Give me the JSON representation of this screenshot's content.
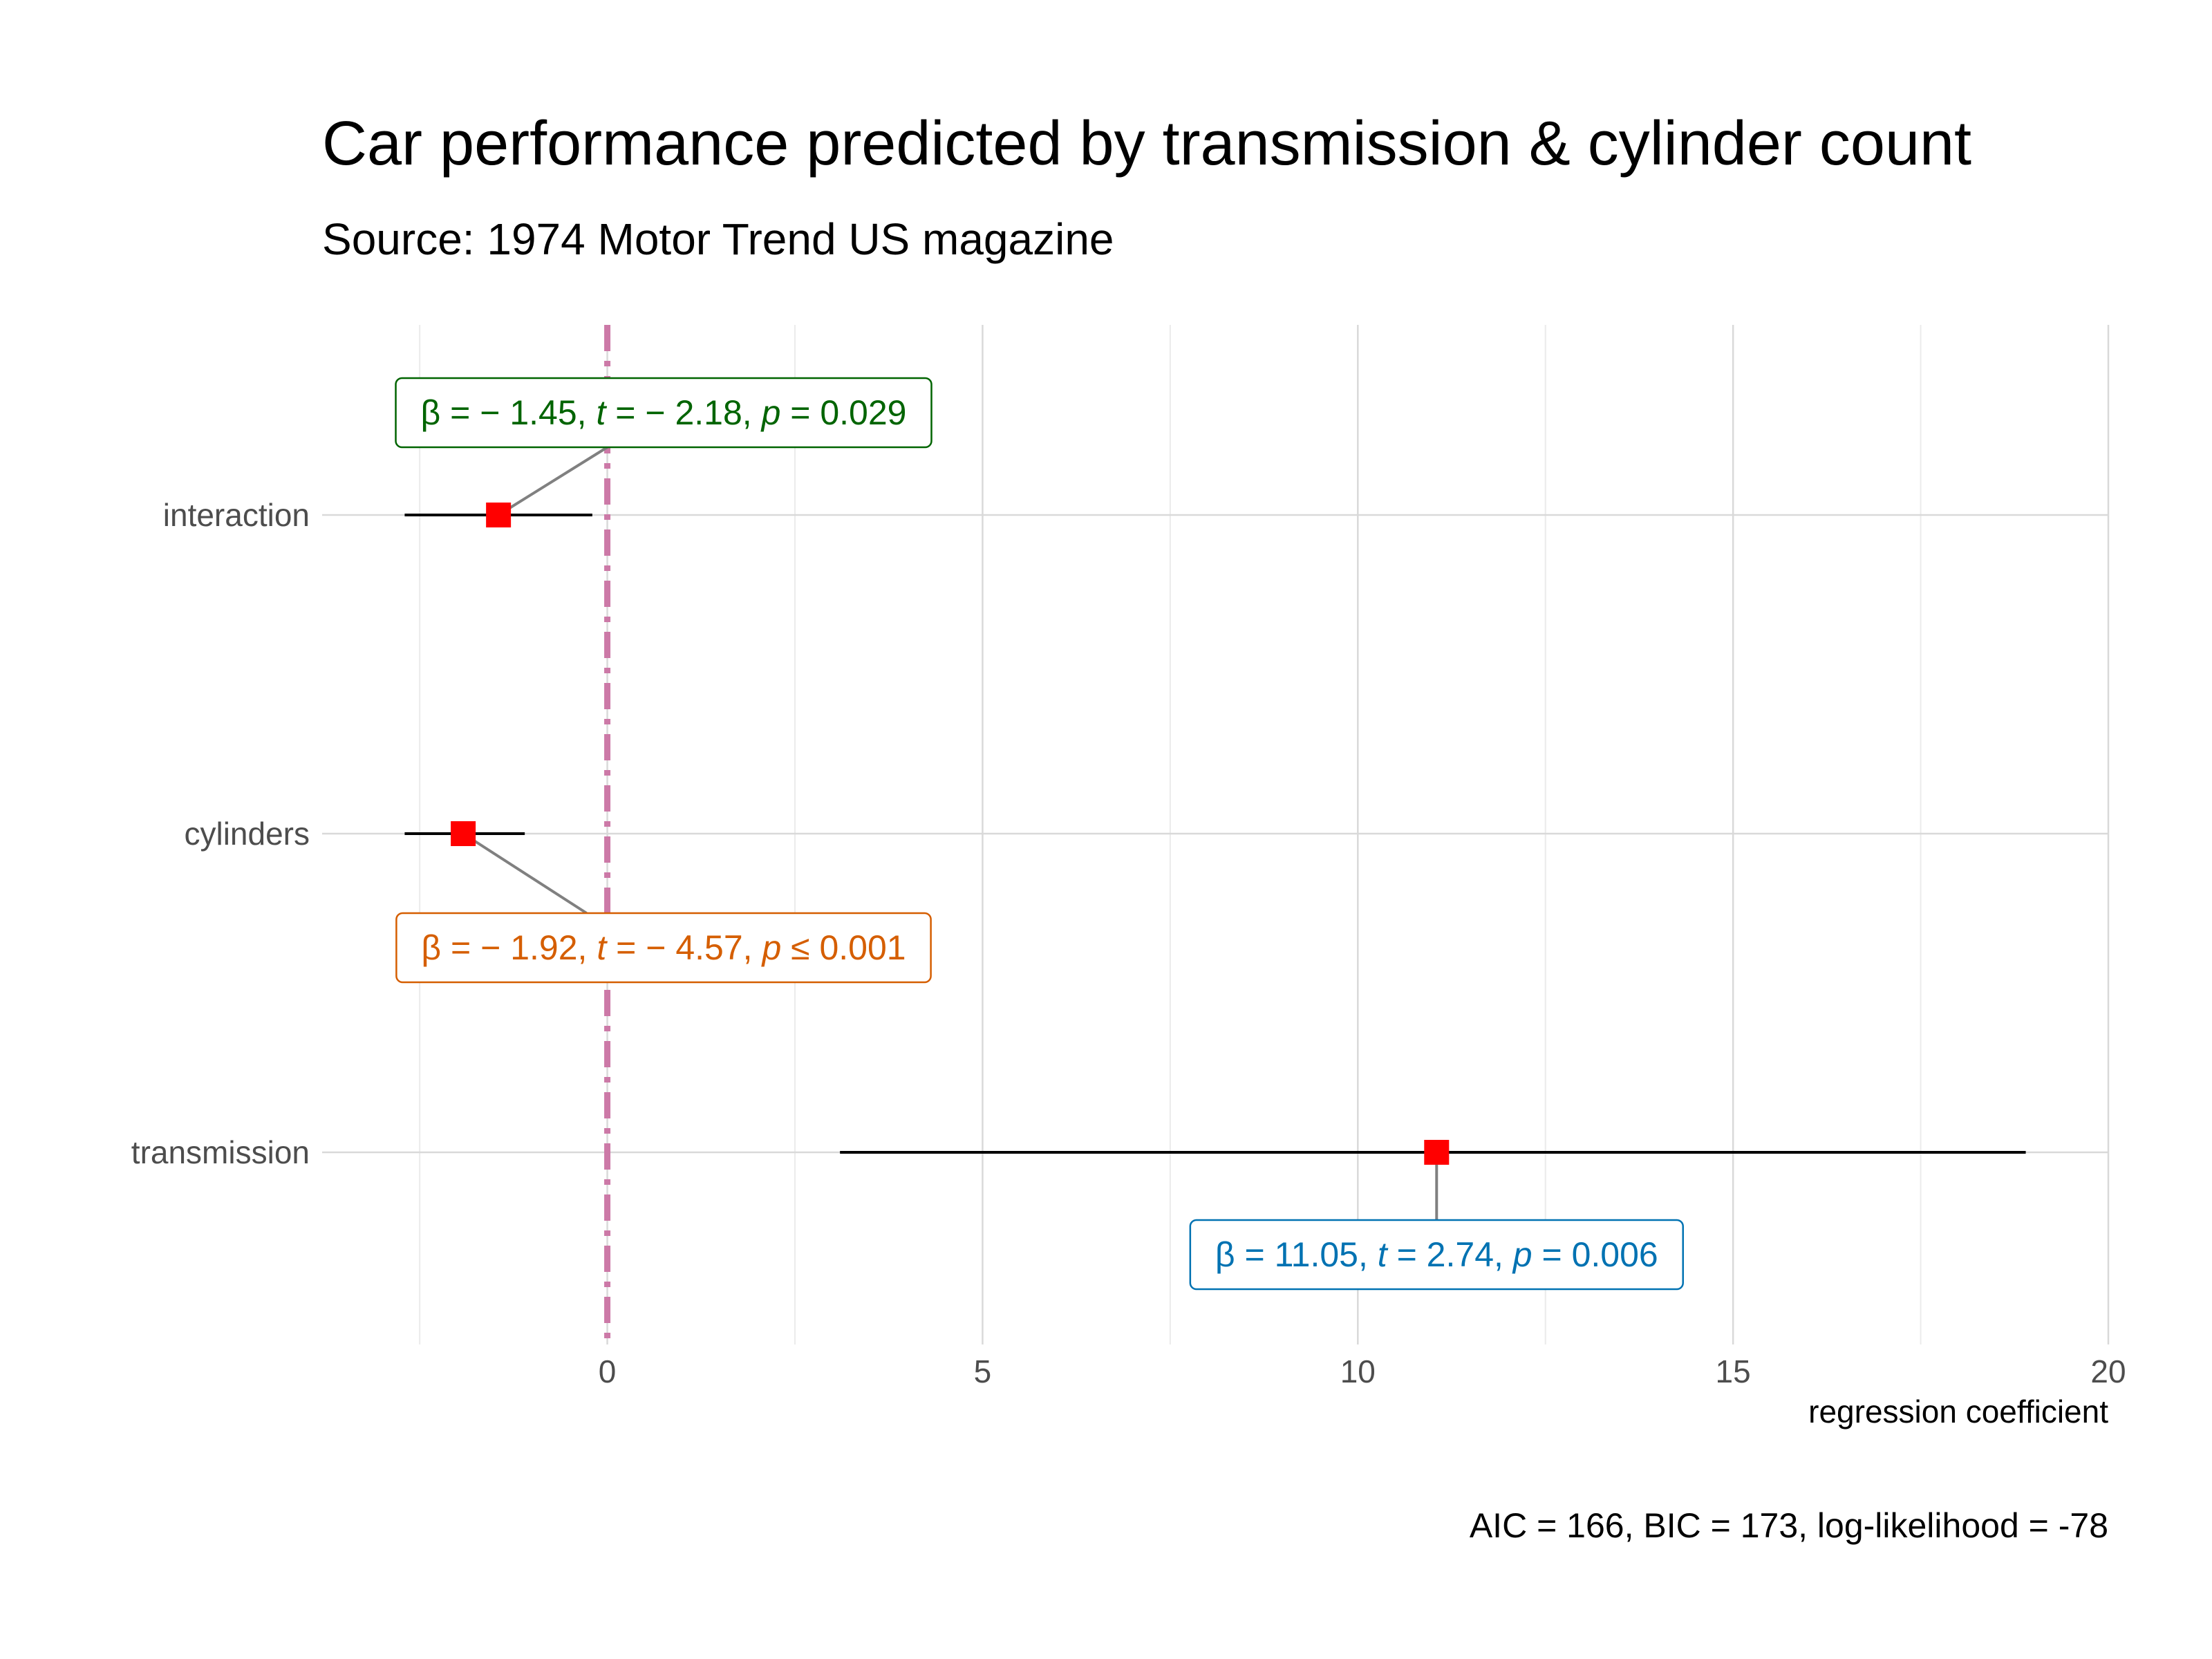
{
  "chart_data": {
    "type": "scatter",
    "title": "Car performance predicted by transmission & cylinder count",
    "subtitle": "Source: 1974 Motor Trend US magazine",
    "xlabel": "regression coefficient",
    "ylabel": "",
    "xlim": [
      -3.8,
      20
    ],
    "x_ticks": [
      0,
      5,
      10,
      15,
      20
    ],
    "x_tick_labels": [
      "0",
      "5",
      "10",
      "15",
      "20"
    ],
    "grid": true,
    "reference_line": {
      "x": 0,
      "style": "dashed",
      "color": "#CC79A7"
    },
    "point_color": "#FF0000",
    "terms": [
      {
        "name": "interaction",
        "estimate": -1.45,
        "ci_low": -2.7,
        "ci_high": -0.2,
        "label": {
          "beta": "-1.45",
          "t": "-2.18",
          "p_op": "=",
          "p": "0.029",
          "color": "#006400",
          "position": "above"
        }
      },
      {
        "name": "cylinders",
        "estimate": -1.92,
        "ci_low": -2.7,
        "ci_high": -1.1,
        "label": {
          "beta": "-1.92",
          "t": "-4.57",
          "p_op": "≤",
          "p": "0.001",
          "color": "#D55E00",
          "position": "below"
        }
      },
      {
        "name": "transmission",
        "estimate": 11.05,
        "ci_low": 3.1,
        "ci_high": 18.9,
        "label": {
          "beta": "11.05",
          "t": "2.74",
          "p_op": "=",
          "p": "0.006",
          "color": "#0072B2",
          "position": "below"
        }
      }
    ],
    "caption": "AIC = 166, BIC = 173, log-likelihood = -78"
  }
}
